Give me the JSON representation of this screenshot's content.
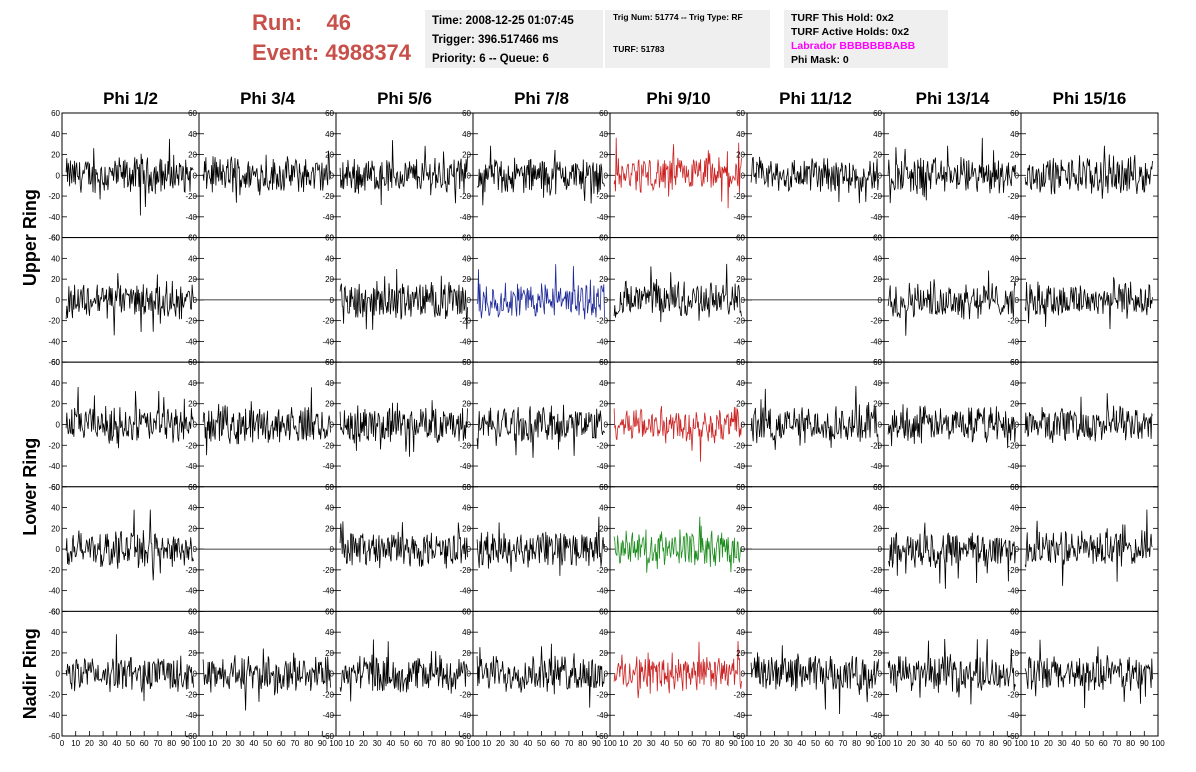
{
  "header": {
    "run_label": "Run:",
    "run_value": "46",
    "event_label": "Event:",
    "event_value": "4988374"
  },
  "info": {
    "time": "Time: 2008-12-25 01:07:45",
    "trigger": "Trigger: 396.517466 ms",
    "priority": "Priority: 6 -- Queue: 6",
    "trig_num": "Trig Num: 51774 -- Trig Type: RF",
    "turf": "TURF: 51783",
    "turf_hold": "TURF This Hold: 0x2",
    "turf_active": "TURF Active Holds: 0x2",
    "labrador": "Labrador BBBBBBBABB",
    "phi_mask": "Phi Mask: 0"
  },
  "colors": {
    "header_red": "#c8504a",
    "labrador_magenta": "#ff00ff",
    "trace_default": "#000000",
    "trace_red": "#cc2222",
    "trace_blue": "#1f2a99",
    "trace_green": "#1c8c1c"
  },
  "chart_data": {
    "type": "line",
    "columns": [
      "Phi 1/2",
      "Phi 3/4",
      "Phi 5/6",
      "Phi 7/8",
      "Phi 9/10",
      "Phi 11/12",
      "Phi 13/14",
      "Phi 15/16"
    ],
    "ring_labels": [
      "Upper Ring",
      "Lower Ring",
      "Nadir Ring"
    ],
    "ylim": [
      -60,
      60
    ],
    "xlim": [
      0,
      100
    ],
    "y_ticks": [
      -60,
      -40,
      -20,
      0,
      20,
      40,
      60
    ],
    "y_tick_labels": [
      "-60",
      "-40",
      "-20",
      "0",
      "20",
      "40",
      "60"
    ],
    "x_ticks": [
      0,
      10,
      20,
      30,
      40,
      50,
      60,
      70,
      80,
      90,
      100
    ],
    "x_tick_labels": [
      "0",
      "10",
      "20",
      "30",
      "40",
      "50",
      "60",
      "70",
      "80",
      "90",
      "100"
    ],
    "panels_rows": 5,
    "flat_panels": [
      [
        1,
        1
      ],
      [
        1,
        5
      ],
      [
        3,
        1
      ],
      [
        3,
        5
      ]
    ],
    "highlight_panels": [
      {
        "row": 0,
        "col": 4,
        "color": "trace_red"
      },
      {
        "row": 1,
        "col": 3,
        "color": "trace_blue"
      },
      {
        "row": 2,
        "col": 4,
        "color": "trace_red"
      },
      {
        "row": 3,
        "col": 4,
        "color": "trace_green"
      },
      {
        "row": 4,
        "col": 4,
        "color": "trace_red"
      }
    ],
    "trace_amplitude": 15
  }
}
